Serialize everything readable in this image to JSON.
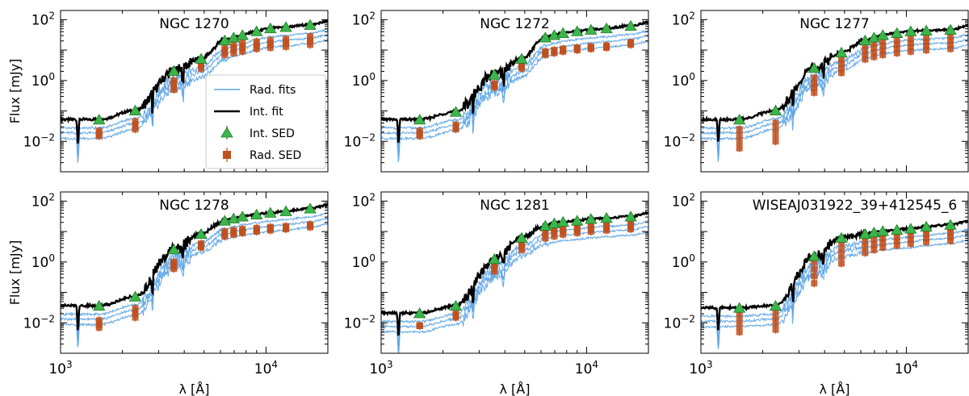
{
  "chart_data": {
    "type": "line",
    "figure": "Spectral energy distribution fits, 2x3 panel grid",
    "xlabel": "λ [Å]",
    "ylabel": "Flux [mJy]",
    "xscale": "log",
    "yscale": "log",
    "xlim": [
      1000,
      20000
    ],
    "ylim": [
      0.001,
      200
    ],
    "x_ticks": [
      {
        "value": 1000,
        "base": "10",
        "exp": "3"
      },
      {
        "value": 10000,
        "base": "10",
        "exp": "4"
      }
    ],
    "y_ticks": [
      {
        "value": 0.01,
        "base": "10",
        "exp": "−2"
      },
      {
        "value": 1,
        "base": "10",
        "exp": "0"
      },
      {
        "value": 100,
        "base": "10",
        "exp": "2"
      }
    ],
    "legend": {
      "location": "inside first panel, lower right",
      "entries": [
        {
          "label": "Rad. fits",
          "style": "line",
          "color": "#5aa3e6"
        },
        {
          "label": "Int. fit",
          "style": "line",
          "color": "#000000"
        },
        {
          "label": "Int. SED",
          "style": "triangle",
          "color": "#3cb64a"
        },
        {
          "label": "Rad. SED",
          "style": "square-errorbar",
          "color": "#c0501e"
        }
      ]
    },
    "colors": {
      "rad_fit": "#5aa3e6",
      "int_fit": "#000000",
      "int_sed": "#3cb64a",
      "rad_sed": "#c0501e"
    },
    "panels": [
      {
        "title": "NGC 1270",
        "int_sed": [
          [
            1540,
            0.05
          ],
          [
            2310,
            0.1
          ],
          [
            3560,
            2.0
          ],
          [
            4830,
            5.0
          ],
          [
            6300,
            20.0
          ],
          [
            6960,
            25.0
          ],
          [
            7680,
            30.0
          ],
          [
            9000,
            40.0
          ],
          [
            10500,
            50.0
          ],
          [
            12500,
            55.0
          ],
          [
            16400,
            65.0
          ]
        ],
        "rad_sed": [
          [
            1540,
            [
              0.015,
              0.022
            ]
          ],
          [
            2310,
            [
              0.025,
              0.045
            ]
          ],
          [
            3560,
            [
              0.5,
              1.0
            ]
          ],
          [
            4830,
            [
              2.5,
              4.0
            ]
          ],
          [
            6300,
            [
              7.0,
              12.0
            ]
          ],
          [
            6960,
            [
              8.0,
              15.0
            ]
          ],
          [
            7680,
            [
              9.0,
              17.0
            ]
          ],
          [
            9000,
            [
              11.0,
              19.0
            ]
          ],
          [
            10500,
            [
              12.0,
              21.0
            ]
          ],
          [
            12500,
            [
              13.0,
              23.0
            ]
          ],
          [
            16400,
            [
              15.0,
              28.0
            ]
          ]
        ]
      },
      {
        "title": "NGC 1272",
        "int_sed": [
          [
            1540,
            0.05
          ],
          [
            2310,
            0.09
          ],
          [
            3560,
            1.5
          ],
          [
            4830,
            5.0
          ],
          [
            6300,
            25.0
          ],
          [
            6960,
            30.0
          ],
          [
            7680,
            35.0
          ],
          [
            9000,
            40.0
          ],
          [
            10500,
            45.0
          ],
          [
            12500,
            50.0
          ],
          [
            16400,
            60.0
          ]
        ],
        "rad_sed": [
          [
            1540,
            [
              0.015,
              0.022
            ]
          ],
          [
            2310,
            [
              0.025,
              0.035
            ]
          ],
          [
            3560,
            [
              0.6,
              0.8
            ]
          ],
          [
            4830,
            [
              2.5,
              3.5
            ]
          ],
          [
            6300,
            [
              7.0,
              9.0
            ]
          ],
          [
            6960,
            [
              8.0,
              10.0
            ]
          ],
          [
            7680,
            [
              9.0,
              11.0
            ]
          ],
          [
            9000,
            [
              10.0,
              12.0
            ]
          ],
          [
            10500,
            [
              11.0,
              13.0
            ]
          ],
          [
            12500,
            [
              12.0,
              14.0
            ]
          ],
          [
            16400,
            [
              15.0,
              18.0
            ]
          ]
        ]
      },
      {
        "title": "NGC 1277",
        "int_sed": [
          [
            1540,
            0.05
          ],
          [
            2310,
            0.1
          ],
          [
            3560,
            2.5
          ],
          [
            4830,
            8.0
          ],
          [
            6300,
            20.0
          ],
          [
            6960,
            25.0
          ],
          [
            7680,
            30.0
          ],
          [
            9000,
            35.0
          ],
          [
            10500,
            40.0
          ],
          [
            12500,
            42.0
          ],
          [
            16400,
            45.0
          ]
        ],
        "rad_sed": [
          [
            1540,
            [
              0.006,
              0.025
            ]
          ],
          [
            2310,
            [
              0.01,
              0.04
            ]
          ],
          [
            3560,
            [
              0.4,
              1.2
            ]
          ],
          [
            4830,
            [
              1.8,
              5.0
            ]
          ],
          [
            6300,
            [
              5.0,
              14.0
            ]
          ],
          [
            6960,
            [
              6.0,
              17.0
            ]
          ],
          [
            7680,
            [
              7.0,
              19.0
            ]
          ],
          [
            9000,
            [
              8.0,
              21.0
            ]
          ],
          [
            10500,
            [
              9.0,
              23.0
            ]
          ],
          [
            12500,
            [
              10.0,
              25.0
            ]
          ],
          [
            16400,
            [
              11.0,
              28.0
            ]
          ]
        ]
      },
      {
        "title": "NGC 1278",
        "int_sed": [
          [
            1540,
            0.035
          ],
          [
            2310,
            0.07
          ],
          [
            3560,
            2.5
          ],
          [
            4830,
            8.0
          ],
          [
            6300,
            22.0
          ],
          [
            6960,
            26.0
          ],
          [
            7680,
            30.0
          ],
          [
            9000,
            35.0
          ],
          [
            10500,
            40.0
          ],
          [
            12500,
            45.0
          ],
          [
            16400,
            55.0
          ]
        ],
        "rad_sed": [
          [
            1540,
            [
              0.007,
              0.012
            ]
          ],
          [
            2310,
            [
              0.015,
              0.03
            ]
          ],
          [
            3560,
            [
              0.6,
              1.0
            ]
          ],
          [
            4830,
            [
              3.0,
              4.0
            ]
          ],
          [
            6300,
            [
              7.0,
              10.0
            ]
          ],
          [
            6960,
            [
              8.0,
              11.0
            ]
          ],
          [
            7680,
            [
              9.0,
              12.0
            ]
          ],
          [
            9000,
            [
              10.0,
              13.0
            ]
          ],
          [
            10500,
            [
              11.0,
              14.0
            ]
          ],
          [
            12500,
            [
              12.0,
              15.0
            ]
          ],
          [
            16400,
            [
              14.0,
              17.0
            ]
          ]
        ]
      },
      {
        "title": "NGC 1281",
        "int_sed": [
          [
            1540,
            0.02
          ],
          [
            2310,
            0.035
          ],
          [
            3560,
            1.2
          ],
          [
            4830,
            6.0
          ],
          [
            6300,
            15.0
          ],
          [
            6960,
            18.0
          ],
          [
            7680,
            20.0
          ],
          [
            9000,
            22.0
          ],
          [
            10500,
            25.0
          ],
          [
            12500,
            27.0
          ],
          [
            16400,
            30.0
          ]
        ],
        "rad_sed": [
          [
            1540,
            [
              0.008,
              0.008
            ]
          ],
          [
            2310,
            [
              0.015,
              0.02
            ]
          ],
          [
            3560,
            [
              0.5,
              0.8
            ]
          ],
          [
            4830,
            [
              2.5,
              5.0
            ]
          ],
          [
            6300,
            [
              6.0,
              12.0
            ]
          ],
          [
            6960,
            [
              7.0,
              13.0
            ]
          ],
          [
            7680,
            [
              8.0,
              14.0
            ]
          ],
          [
            9000,
            [
              9.0,
              15.0
            ]
          ],
          [
            10500,
            [
              10.0,
              16.0
            ]
          ],
          [
            12500,
            [
              11.0,
              17.0
            ]
          ],
          [
            16400,
            [
              12.0,
              19.0
            ]
          ]
        ]
      },
      {
        "title": "WISEAJ031922_39+412545_6",
        "int_sed": [
          [
            1540,
            0.03
          ],
          [
            2310,
            0.035
          ],
          [
            3560,
            1.5
          ],
          [
            4830,
            6.0
          ],
          [
            6300,
            8.0
          ],
          [
            6960,
            9.0
          ],
          [
            7680,
            10.0
          ],
          [
            9000,
            11.0
          ],
          [
            10500,
            12.0
          ],
          [
            12500,
            14.0
          ],
          [
            16400,
            16.0
          ]
        ],
        "rad_sed": [
          [
            1540,
            [
              0.005,
              0.02
            ]
          ],
          [
            2310,
            [
              0.006,
              0.025
            ]
          ],
          [
            3560,
            [
              0.2,
              1.0
            ]
          ],
          [
            4830,
            [
              0.9,
              4.0
            ]
          ],
          [
            6300,
            [
              2.0,
              7.0
            ]
          ],
          [
            6960,
            [
              2.5,
              8.0
            ]
          ],
          [
            7680,
            [
              3.0,
              8.5
            ]
          ],
          [
            9000,
            [
              3.5,
              9.0
            ]
          ],
          [
            10500,
            [
              4.0,
              10.0
            ]
          ],
          [
            12500,
            [
              4.5,
              11.0
            ]
          ],
          [
            16400,
            [
              5.0,
              12.0
            ]
          ]
        ]
      }
    ]
  }
}
